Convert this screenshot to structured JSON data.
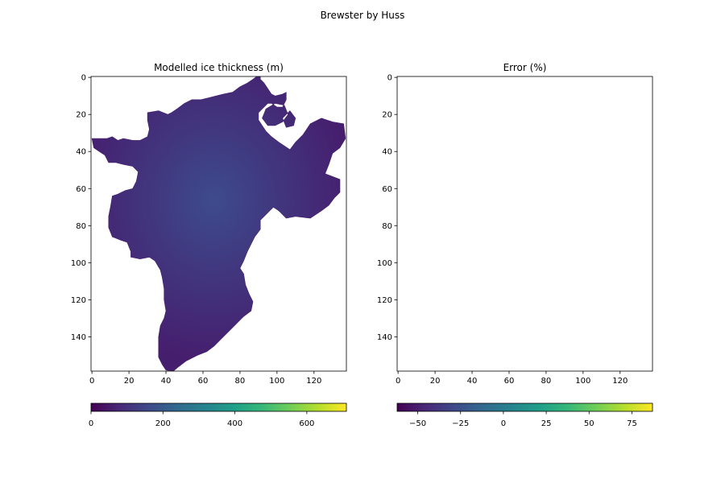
{
  "figure": {
    "suptitle": "Brewster by Huss"
  },
  "chart_data": [
    {
      "type": "heatmap",
      "title": "Modelled ice thickness (m)",
      "x_ticks": [
        0,
        20,
        40,
        60,
        80,
        100,
        120
      ],
      "y_ticks": [
        0,
        20,
        40,
        60,
        80,
        100,
        120,
        140
      ],
      "xlim": [
        -0.5,
        137.5
      ],
      "ylim": [
        158.5,
        -0.5
      ],
      "y_inverted": true,
      "grid": false,
      "colormap": "viridis",
      "colorbar": {
        "orientation": "horizontal",
        "placement": "bottom",
        "range": [
          0,
          710
        ],
        "ticks": [
          0,
          200,
          400,
          600
        ]
      },
      "outline": [
        [
          91,
          -0.5
        ],
        [
          91,
          1
        ],
        [
          93,
          3
        ],
        [
          95,
          6
        ],
        [
          97,
          9
        ],
        [
          99,
          10
        ],
        [
          103,
          9
        ],
        [
          105,
          8
        ],
        [
          105,
          12
        ],
        [
          103,
          16
        ],
        [
          100,
          16
        ],
        [
          97,
          14
        ],
        [
          95,
          14
        ],
        [
          92,
          17
        ],
        [
          90,
          19
        ],
        [
          90,
          23
        ],
        [
          92,
          26
        ],
        [
          94,
          29
        ],
        [
          97,
          32
        ],
        [
          101,
          35
        ],
        [
          104,
          37
        ],
        [
          107,
          39
        ],
        [
          110,
          35
        ],
        [
          114,
          31
        ],
        [
          118,
          25
        ],
        [
          124,
          22
        ],
        [
          130,
          24
        ],
        [
          136,
          25
        ],
        [
          137,
          33
        ],
        [
          134,
          38
        ],
        [
          130,
          41
        ],
        [
          128,
          47
        ],
        [
          126,
          52
        ],
        [
          134,
          55
        ],
        [
          134,
          62
        ],
        [
          131,
          65
        ],
        [
          128,
          69
        ],
        [
          124,
          72
        ],
        [
          118,
          76
        ],
        [
          110,
          75
        ],
        [
          105,
          76
        ],
        [
          101,
          72
        ],
        [
          98,
          70
        ],
        [
          94,
          74
        ],
        [
          91,
          77
        ],
        [
          91,
          82
        ],
        [
          88,
          86
        ],
        [
          86,
          90
        ],
        [
          84,
          94
        ],
        [
          82,
          99
        ],
        [
          80,
          103
        ],
        [
          82,
          106
        ],
        [
          83,
          112
        ],
        [
          85,
          117
        ],
        [
          87,
          121
        ],
        [
          86,
          126
        ],
        [
          82,
          129
        ],
        [
          78,
          133
        ],
        [
          74,
          137
        ],
        [
          70,
          141
        ],
        [
          66,
          145
        ],
        [
          62,
          148
        ],
        [
          57,
          150
        ],
        [
          51,
          153
        ],
        [
          47,
          156
        ],
        [
          44,
          158.5
        ],
        [
          40,
          158
        ],
        [
          38,
          155
        ],
        [
          36,
          151
        ],
        [
          36,
          146
        ],
        [
          36,
          140
        ],
        [
          37,
          134
        ],
        [
          39,
          130
        ],
        [
          40,
          126
        ],
        [
          39,
          120
        ],
        [
          39,
          114
        ],
        [
          38,
          108
        ],
        [
          37,
          104
        ],
        [
          34,
          99
        ],
        [
          31,
          97
        ],
        [
          26,
          98
        ],
        [
          21,
          97
        ],
        [
          21,
          94
        ],
        [
          19,
          89
        ],
        [
          16,
          88
        ],
        [
          11,
          86
        ],
        [
          9,
          81
        ],
        [
          9,
          75
        ],
        [
          10,
          70
        ],
        [
          11,
          64
        ],
        [
          14,
          63
        ],
        [
          18,
          61
        ],
        [
          22,
          60
        ],
        [
          24,
          56
        ],
        [
          25,
          51
        ],
        [
          22,
          48
        ],
        [
          17,
          47
        ],
        [
          13,
          46
        ],
        [
          9,
          46
        ],
        [
          7,
          42
        ],
        [
          4,
          40
        ],
        [
          1,
          38
        ],
        [
          0,
          33
        ],
        [
          4,
          33
        ],
        [
          8,
          33
        ],
        [
          11,
          32
        ],
        [
          14,
          34
        ],
        [
          17,
          33
        ],
        [
          22,
          34
        ],
        [
          26,
          34
        ],
        [
          30,
          32
        ],
        [
          31,
          28
        ],
        [
          30,
          23
        ],
        [
          30,
          19
        ],
        [
          36,
          18
        ],
        [
          41,
          20
        ],
        [
          43,
          19
        ],
        [
          46,
          17
        ],
        [
          50,
          14
        ],
        [
          54,
          12
        ],
        [
          59,
          12
        ],
        [
          63,
          11
        ],
        [
          67,
          10
        ],
        [
          71,
          9
        ],
        [
          76,
          8
        ],
        [
          80,
          5
        ],
        [
          84,
          3
        ],
        [
          87,
          1
        ],
        [
          89,
          -0.5
        ]
      ],
      "holes": [
        [
          [
            92,
            22
          ],
          [
            94,
            17
          ],
          [
            99,
            14
          ],
          [
            104,
            15
          ],
          [
            106,
            20
          ],
          [
            103,
            24
          ],
          [
            99,
            26
          ],
          [
            95,
            26
          ]
        ],
        [
          [
            103,
            22
          ],
          [
            107,
            18
          ],
          [
            110,
            22
          ],
          [
            109,
            26
          ],
          [
            105,
            27
          ]
        ]
      ]
    },
    {
      "type": "heatmap",
      "title": "Error (%)",
      "x_ticks": [
        0,
        20,
        40,
        60,
        80,
        100,
        120
      ],
      "y_ticks": [
        0,
        20,
        40,
        60,
        80,
        100,
        120,
        140
      ],
      "xlim": [
        -0.5,
        137.5
      ],
      "ylim": [
        158.5,
        -0.5
      ],
      "y_inverted": true,
      "grid": false,
      "colormap": "viridis",
      "values": "empty",
      "colorbar": {
        "orientation": "horizontal",
        "placement": "bottom",
        "range": [
          -62,
          87
        ],
        "ticks": [
          -50,
          -25,
          0,
          25,
          50,
          75
        ]
      }
    }
  ],
  "colors": {
    "viridis": [
      "#440154",
      "#482878",
      "#3e4989",
      "#31688e",
      "#26828e",
      "#1f9e89",
      "#35b779",
      "#6ece58",
      "#b5de2b",
      "#fde725"
    ],
    "ice_fill_base": "#461e6e",
    "ice_fill_center": "#3d4b8c",
    "axis": "#000000",
    "background": "#ffffff"
  }
}
